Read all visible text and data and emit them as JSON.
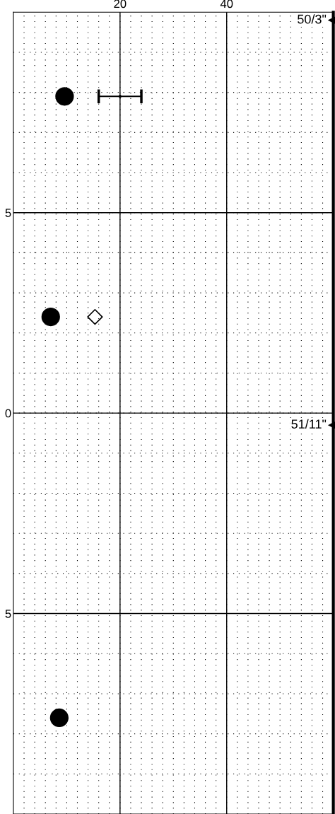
{
  "chart_data": {
    "type": "scatter",
    "xlim": [
      0,
      60
    ],
    "xticks": [
      20,
      40
    ],
    "ylim": [
      -10,
      10
    ],
    "yticks": [
      {
        "value": -5,
        "label": "5"
      },
      {
        "value": 0,
        "label": "0"
      },
      {
        "value": 5,
        "label": "5"
      }
    ],
    "grid": true,
    "series": [
      {
        "color": "#000000",
        "marker": "circle",
        "x": [
          9.6,
          7.0,
          8.6
        ],
        "values": [
          7.9,
          2.4,
          -7.6
        ]
      },
      {
        "color": "#000000",
        "marker": "diamond",
        "x": [
          15.3
        ],
        "values": [
          2.4
        ]
      },
      {
        "color": "#000000",
        "marker": "none",
        "x": [
          20
        ],
        "values": [
          7.9
        ],
        "xerrors": [
          4
        ]
      }
    ],
    "annotations": [
      {
        "text": "50/3\"",
        "x": 60,
        "y": 9.8
      },
      {
        "text": "51/11\"",
        "x": 60,
        "y": -0.3
      }
    ]
  }
}
